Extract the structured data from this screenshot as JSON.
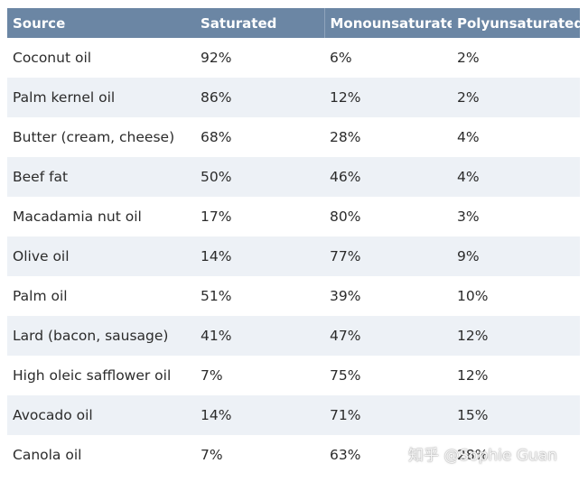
{
  "table": {
    "headers": [
      "Source",
      "Saturated",
      "Monounsaturated",
      "Polyunsaturated"
    ],
    "rows": [
      [
        "Coconut oil",
        "92%",
        "6%",
        "2%"
      ],
      [
        "Palm kernel oil",
        "86%",
        "12%",
        "2%"
      ],
      [
        "Butter (cream, cheese)",
        "68%",
        "28%",
        "4%"
      ],
      [
        "Beef fat",
        "50%",
        "46%",
        "4%"
      ],
      [
        "Macadamia nut oil",
        "17%",
        "80%",
        "3%"
      ],
      [
        "Olive oil",
        "14%",
        "77%",
        "9%"
      ],
      [
        "Palm oil",
        "51%",
        "39%",
        "10%"
      ],
      [
        "Lard (bacon, sausage)",
        "41%",
        "47%",
        "12%"
      ],
      [
        "High oleic safflower oil",
        "7%",
        "75%",
        "12%"
      ],
      [
        "Avocado oil",
        "14%",
        "71%",
        "15%"
      ],
      [
        "Canola oil",
        "7%",
        "63%",
        "28%"
      ]
    ]
  },
  "watermark": "知乎 @Sophie Guan",
  "colors": {
    "header_bg": "#6b86a4",
    "header_text": "#ffffff",
    "alt_row_bg": "#edf1f6",
    "body_text": "#2b2b2b"
  }
}
